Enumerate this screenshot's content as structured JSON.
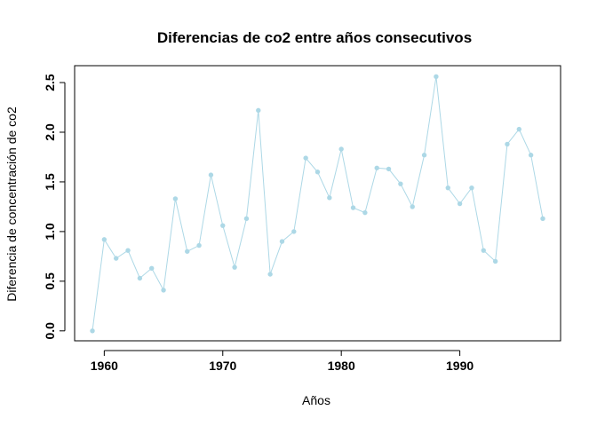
{
  "chart_data": {
    "type": "line",
    "title": "Diferencias de co2 entre años consecutivos",
    "xlabel": "Años",
    "ylabel": "Diferencia de concentración de co2",
    "xlim": [
      1957.5,
      1998.5
    ],
    "ylim": [
      -0.1,
      2.67
    ],
    "x_ticks": [
      1960,
      1970,
      1980,
      1990
    ],
    "y_ticks": [
      0.0,
      0.5,
      1.0,
      1.5,
      2.0,
      2.5
    ],
    "y_tick_labels": [
      "0.0",
      "0.5",
      "1.0",
      "1.5",
      "2.0",
      "2.5"
    ],
    "grid": false,
    "line_color": "#ADD8E6",
    "marker": "filled-circle",
    "series": [
      {
        "x": [
          1959,
          1960,
          1961,
          1962,
          1963,
          1964,
          1965,
          1966,
          1967,
          1968,
          1969,
          1970,
          1971,
          1972,
          1973,
          1974,
          1975,
          1976,
          1977,
          1978,
          1979,
          1980,
          1981,
          1982,
          1983,
          1984,
          1985,
          1986,
          1987,
          1988,
          1989,
          1990,
          1991,
          1992,
          1993,
          1994,
          1995,
          1996,
          1997
        ],
        "values": [
          0.0,
          0.92,
          0.73,
          0.81,
          0.53,
          0.63,
          0.41,
          1.33,
          0.8,
          0.86,
          1.57,
          1.06,
          0.64,
          1.13,
          2.22,
          0.57,
          0.9,
          1.0,
          1.74,
          1.6,
          1.34,
          1.83,
          1.24,
          1.19,
          1.64,
          1.63,
          1.48,
          1.25,
          1.77,
          2.56,
          1.44,
          1.28,
          1.44,
          0.81,
          0.7,
          1.88,
          2.03,
          1.77,
          1.13
        ]
      }
    ]
  }
}
